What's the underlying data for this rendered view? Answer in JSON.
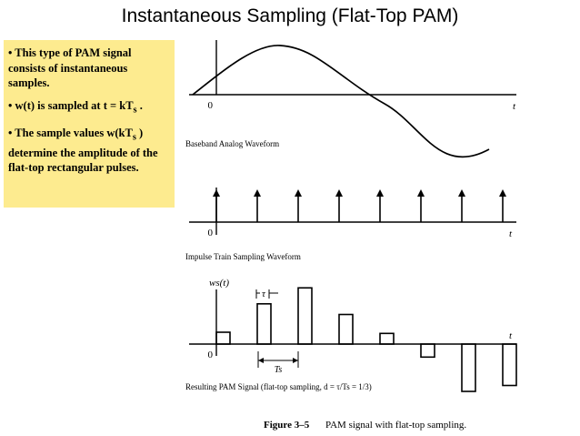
{
  "slide": {
    "title": "Instantaneous Sampling (Flat-Top PAM)"
  },
  "notes": {
    "bullet1": "• This type of PAM signal consists of instantaneous samples.",
    "bullet2_prefix": "• w(t) is sampled at t = kT",
    "bullet2_sub": "s",
    "bullet2_suffix": " .",
    "bullet3_prefix": "• The sample values w(kT",
    "bullet3_sub": "s",
    "bullet3_suffix": " ) determine the amplitude of the flat-top rectangular pulses.",
    "highlight_color": "#fdeb8f"
  },
  "figure": {
    "panel1_caption": "Baseband Analog Waveform",
    "panel2_caption": "Impulse Train Sampling Waveform",
    "panel3_caption": "Resulting PAM Signal (flat-top sampling, d = τ/Ts = 1/3)",
    "axis_zero": "0",
    "axis_t": "t",
    "ws_label": "ws(t)",
    "tau_label": "τ",
    "ts_label": "Ts",
    "figure_number": "Figure 3–5",
    "figure_caption": "PAM signal with flat-top sampling.",
    "pulse_heights": [
      0.2,
      0.68,
      0.95,
      0.5,
      0.18,
      -0.22,
      -0.8,
      -0.7
    ]
  }
}
